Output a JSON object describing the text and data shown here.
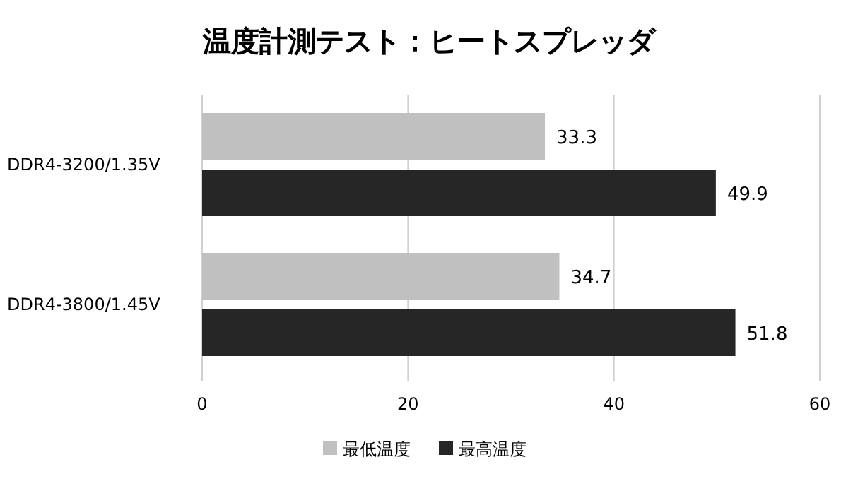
{
  "chart_data": {
    "type": "bar",
    "orientation": "horizontal",
    "title": "温度計測テスト：ヒートスプレッダ",
    "categories": [
      "DDR4-3200/1.35V",
      "DDR4-3800/1.45V"
    ],
    "series": [
      {
        "name": "最低温度",
        "color": "#c0c0c0",
        "values": [
          33.3,
          34.7
        ]
      },
      {
        "name": "最高温度",
        "color": "#262626",
        "values": [
          49.9,
          51.8
        ]
      }
    ],
    "xlim": [
      0,
      60
    ],
    "xticks": [
      0,
      20,
      40,
      60
    ],
    "grid": "x",
    "legend": "bottom",
    "data_labels": true
  }
}
